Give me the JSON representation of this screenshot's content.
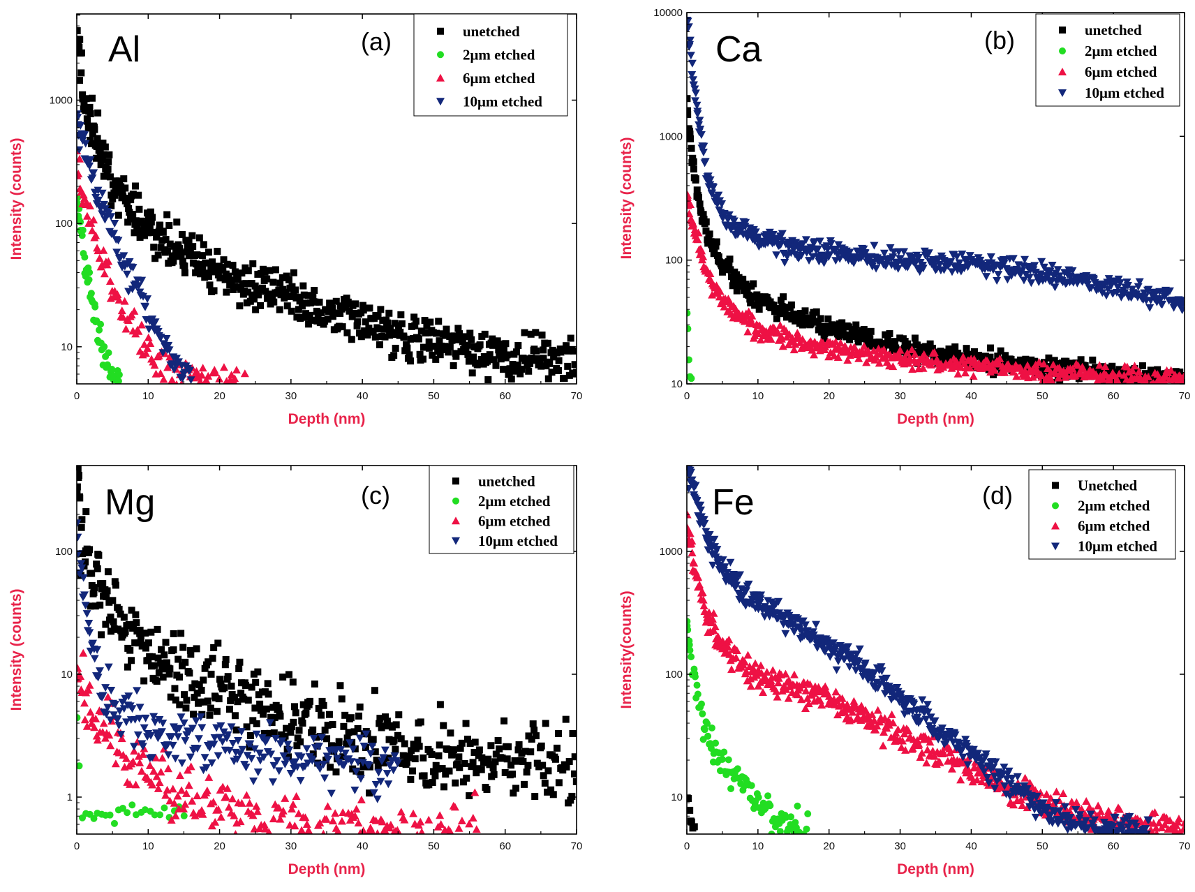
{
  "colors": {
    "axis_title": "#e8234a",
    "unetched": "#000000",
    "etched_2um": "#22dd22",
    "etched_6um": "#ee1144",
    "etched_10um": "#12277a"
  },
  "chart_data": [
    {
      "type": "scatter",
      "element_label": "Al",
      "panel_letter": "(a)",
      "xlabel": "Depth (nm)",
      "ylabel": "Intensity (counts)",
      "y_scale": "log",
      "xlim": [
        0,
        70
      ],
      "ylim": [
        5,
        5000
      ],
      "x_ticks": [
        0,
        10,
        20,
        30,
        40,
        50,
        60,
        70
      ],
      "y_ticks": [
        10,
        100,
        1000
      ],
      "legend_position": "top-right",
      "series": [
        {
          "name": "unetched",
          "marker": "square",
          "color": "#000000",
          "curve": [
            [
              0,
              4000
            ],
            [
              0.5,
              1800
            ],
            [
              1,
              1000
            ],
            [
              2,
              600
            ],
            [
              3,
              400
            ],
            [
              5,
              230
            ],
            [
              8,
              120
            ],
            [
              10,
              90
            ],
            [
              15,
              55
            ],
            [
              20,
              38
            ],
            [
              25,
              30
            ],
            [
              30,
              24
            ],
            [
              35,
              20
            ],
            [
              40,
              16
            ],
            [
              45,
              13
            ],
            [
              50,
              11
            ],
            [
              55,
              9.5
            ],
            [
              60,
              8.5
            ],
            [
              65,
              8
            ],
            [
              70,
              7.5
            ]
          ],
          "x_range": [
            0,
            70
          ],
          "n_points": 560,
          "scatter": 0.22
        },
        {
          "name": "2μm etched",
          "marker": "circle",
          "color": "#22dd22",
          "curve": [
            [
              0,
              170
            ],
            [
              0.5,
              100
            ],
            [
              1,
              60
            ],
            [
              2,
              30
            ],
            [
              3,
              13
            ],
            [
              4,
              8
            ],
            [
              5,
              5.5
            ],
            [
              6,
              4.8
            ]
          ],
          "x_range": [
            0,
            6
          ],
          "n_points": 55,
          "scatter": 0.18
        },
        {
          "name": "6μm etched",
          "marker": "triangle-up",
          "color": "#ee1144",
          "curve": [
            [
              0,
              320
            ],
            [
              1,
              170
            ],
            [
              2,
              110
            ],
            [
              3,
              60
            ],
            [
              5,
              33
            ],
            [
              7,
              18
            ],
            [
              9,
              11
            ],
            [
              12,
              7
            ],
            [
              14,
              6
            ],
            [
              16,
              5.5
            ],
            [
              20,
              5
            ],
            [
              23.5,
              5
            ]
          ],
          "x_range": [
            0,
            23.5
          ],
          "n_points": 120,
          "scatter": 0.16
        },
        {
          "name": "10μm etched",
          "marker": "triangle-down",
          "color": "#12277a",
          "curve": [
            [
              0,
              700
            ],
            [
              1,
              420
            ],
            [
              2,
              250
            ],
            [
              3,
              160
            ],
            [
              5,
              90
            ],
            [
              7,
              45
            ],
            [
              9,
              25
            ],
            [
              11,
              14
            ],
            [
              13,
              9
            ],
            [
              15,
              6
            ],
            [
              16,
              5.5
            ]
          ],
          "x_range": [
            0,
            16
          ],
          "n_points": 110,
          "scatter": 0.14
        }
      ]
    },
    {
      "type": "scatter",
      "element_label": "Ca",
      "panel_letter": "(b)",
      "xlabel": "Depth (nm)",
      "ylabel": "Intensity (counts)",
      "y_scale": "log",
      "xlim": [
        0,
        70
      ],
      "ylim": [
        10,
        10000
      ],
      "x_ticks": [
        0,
        10,
        20,
        30,
        40,
        50,
        60,
        70
      ],
      "y_ticks": [
        10,
        100,
        1000,
        10000
      ],
      "legend_position": "top-right",
      "series": [
        {
          "name": "unetched",
          "marker": "square",
          "color": "#000000",
          "curve": [
            [
              0,
              2000
            ],
            [
              0.5,
              1000
            ],
            [
              1,
              500
            ],
            [
              2,
              250
            ],
            [
              3,
              150
            ],
            [
              5,
              90
            ],
            [
              8,
              60
            ],
            [
              10,
              48
            ],
            [
              15,
              36
            ],
            [
              20,
              28
            ],
            [
              30,
              20
            ],
            [
              40,
              16
            ],
            [
              50,
              13.5
            ],
            [
              60,
              12
            ],
            [
              70,
              11
            ]
          ],
          "x_range": [
            0,
            70
          ],
          "n_points": 480,
          "scatter": 0.1
        },
        {
          "name": "2μm etched",
          "marker": "circle",
          "color": "#22dd22",
          "curve": [
            [
              0,
              45
            ],
            [
              0.2,
              20
            ],
            [
              0.4,
              12
            ],
            [
              0.6,
              11
            ]
          ],
          "x_range": [
            0,
            0.6
          ],
          "n_points": 5,
          "scatter": 0.05
        },
        {
          "name": "6μm etched",
          "marker": "triangle-up",
          "color": "#ee1144",
          "curve": [
            [
              0,
              350
            ],
            [
              0.5,
              250
            ],
            [
              1,
              180
            ],
            [
              2,
              110
            ],
            [
              3,
              75
            ],
            [
              5,
              48
            ],
            [
              8,
              33
            ],
            [
              10,
              28
            ],
            [
              15,
              22
            ],
            [
              20,
              19
            ],
            [
              30,
              16
            ],
            [
              40,
              14
            ],
            [
              50,
              12.5
            ],
            [
              60,
              11.5
            ],
            [
              70,
              11
            ]
          ],
          "x_range": [
            0,
            70
          ],
          "n_points": 460,
          "scatter": 0.09
        },
        {
          "name": "10μm etched",
          "marker": "triangle-down",
          "color": "#12277a",
          "curve": [
            [
              0,
              9000
            ],
            [
              0.5,
              5000
            ],
            [
              1,
              2500
            ],
            [
              2,
              900
            ],
            [
              3,
              450
            ],
            [
              5,
              230
            ],
            [
              8,
              170
            ],
            [
              10,
              150
            ],
            [
              15,
              125
            ],
            [
              20,
              115
            ],
            [
              30,
              100
            ],
            [
              40,
              92
            ],
            [
              50,
              80
            ],
            [
              60,
              60
            ],
            [
              70,
              45
            ]
          ],
          "x_range": [
            0,
            70
          ],
          "n_points": 520,
          "scatter": 0.1
        }
      ]
    },
    {
      "type": "scatter",
      "element_label": "Mg",
      "panel_letter": "(c)",
      "xlabel": "Depth (nm)",
      "ylabel": "Intensity (counts)",
      "y_scale": "log",
      "xlim": [
        0,
        70
      ],
      "ylim": [
        0.5,
        500
      ],
      "x_ticks": [
        0,
        10,
        20,
        30,
        40,
        50,
        60,
        70
      ],
      "y_ticks": [
        1,
        10,
        100
      ],
      "legend_position": "top-right",
      "series": [
        {
          "name": "unetched",
          "marker": "square",
          "color": "#000000",
          "curve": [
            [
              0,
              500
            ],
            [
              0.5,
              200
            ],
            [
              1,
              110
            ],
            [
              2,
              65
            ],
            [
              3,
              45
            ],
            [
              5,
              30
            ],
            [
              8,
              20
            ],
            [
              10,
              15
            ],
            [
              15,
              10
            ],
            [
              20,
              7.5
            ],
            [
              25,
              6
            ],
            [
              30,
              4.5
            ],
            [
              40,
              3
            ],
            [
              50,
              2.3
            ],
            [
              60,
              2
            ],
            [
              70,
              1.8
            ]
          ],
          "x_range": [
            0,
            70
          ],
          "n_points": 470,
          "scatter": 0.35
        },
        {
          "name": "2μm etched",
          "marker": "circle",
          "color": "#22dd22",
          "curve": [
            [
              0,
              5
            ],
            [
              0.3,
              2
            ],
            [
              0.6,
              0.75
            ],
            [
              5,
              0.72
            ],
            [
              10,
              0.75
            ],
            [
              15,
              0.77
            ]
          ],
          "x_range": [
            0,
            15
          ],
          "n_points": 26,
          "scatter": 0.06
        },
        {
          "name": "6μm etched",
          "marker": "triangle-up",
          "color": "#ee1144",
          "curve": [
            [
              0,
              13
            ],
            [
              1,
              7
            ],
            [
              3,
              4
            ],
            [
              5,
              3
            ],
            [
              8,
              2.2
            ],
            [
              10,
              1.6
            ],
            [
              15,
              1.1
            ],
            [
              20,
              0.85
            ],
            [
              25,
              0.7
            ],
            [
              30,
              0.6
            ],
            [
              40,
              0.55
            ],
            [
              56,
              0.5
            ]
          ],
          "x_range": [
            0,
            56
          ],
          "n_points": 260,
          "scatter": 0.3
        },
        {
          "name": "10μm etched",
          "marker": "triangle-down",
          "color": "#12277a",
          "curve": [
            [
              0,
              160
            ],
            [
              0.5,
              80
            ],
            [
              1,
              40
            ],
            [
              2,
              20
            ],
            [
              3,
              11
            ],
            [
              4,
              7
            ],
            [
              6,
              5
            ],
            [
              8,
              4
            ],
            [
              12,
              3.2
            ],
            [
              20,
              2.6
            ],
            [
              30,
              2.1
            ],
            [
              40,
              1.8
            ],
            [
              45,
              1.7
            ]
          ],
          "x_range": [
            0,
            45
          ],
          "n_points": 230,
          "scatter": 0.25
        }
      ]
    },
    {
      "type": "scatter",
      "element_label": "Fe",
      "panel_letter": "(d)",
      "xlabel": "Depth (nm)",
      "ylabel": "Intensity(counts)",
      "y_scale": "log",
      "xlim": [
        0,
        70
      ],
      "ylim": [
        5,
        5000
      ],
      "x_ticks": [
        0,
        10,
        20,
        30,
        40,
        50,
        60,
        70
      ],
      "y_ticks": [
        10,
        100,
        1000
      ],
      "legend_position": "top-right",
      "series": [
        {
          "name": "Unetched",
          "marker": "square",
          "color": "#000000",
          "curve": [
            [
              0,
              11
            ],
            [
              0.5,
              7
            ],
            [
              1,
              5.5
            ]
          ],
          "x_range": [
            0,
            1
          ],
          "n_points": 8,
          "scatter": 0.1
        },
        {
          "name": "2μm etched",
          "marker": "circle",
          "color": "#22dd22",
          "curve": [
            [
              0,
              300
            ],
            [
              0.5,
              150
            ],
            [
              1,
              90
            ],
            [
              2,
              50
            ],
            [
              3,
              30
            ],
            [
              5,
              20
            ],
            [
              8,
              13
            ],
            [
              10,
              9
            ],
            [
              12,
              7
            ],
            [
              14,
              6
            ],
            [
              17,
              5
            ]
          ],
          "x_range": [
            0,
            17
          ],
          "n_points": 110,
          "scatter": 0.16
        },
        {
          "name": "6μm etched",
          "marker": "triangle-up",
          "color": "#ee1144",
          "curve": [
            [
              0,
              1600
            ],
            [
              0.5,
              1100
            ],
            [
              1,
              800
            ],
            [
              2,
              450
            ],
            [
              3,
              280
            ],
            [
              5,
              170
            ],
            [
              8,
              120
            ],
            [
              10,
              100
            ],
            [
              15,
              78
            ],
            [
              20,
              62
            ],
            [
              25,
              45
            ],
            [
              30,
              32
            ],
            [
              35,
              24
            ],
            [
              40,
              17
            ],
            [
              45,
              12
            ],
            [
              50,
              9
            ],
            [
              55,
              7.5
            ],
            [
              60,
              6.5
            ],
            [
              65,
              5.8
            ],
            [
              70,
              5.2
            ]
          ],
          "x_range": [
            0,
            70
          ],
          "n_points": 500,
          "scatter": 0.13
        },
        {
          "name": "10μm etched",
          "marker": "triangle-down",
          "color": "#12277a",
          "curve": [
            [
              0,
              5000
            ],
            [
              1,
              3000
            ],
            [
              2,
              1800
            ],
            [
              3,
              1200
            ],
            [
              5,
              700
            ],
            [
              8,
              450
            ],
            [
              10,
              370
            ],
            [
              15,
              260
            ],
            [
              20,
              170
            ],
            [
              25,
              110
            ],
            [
              30,
              65
            ],
            [
              35,
              38
            ],
            [
              40,
              22
            ],
            [
              45,
              13
            ],
            [
              50,
              8
            ],
            [
              55,
              6
            ],
            [
              60,
              5.5
            ],
            [
              65,
              5.2
            ]
          ],
          "x_range": [
            0,
            65
          ],
          "n_points": 520,
          "scatter": 0.12
        }
      ]
    }
  ]
}
